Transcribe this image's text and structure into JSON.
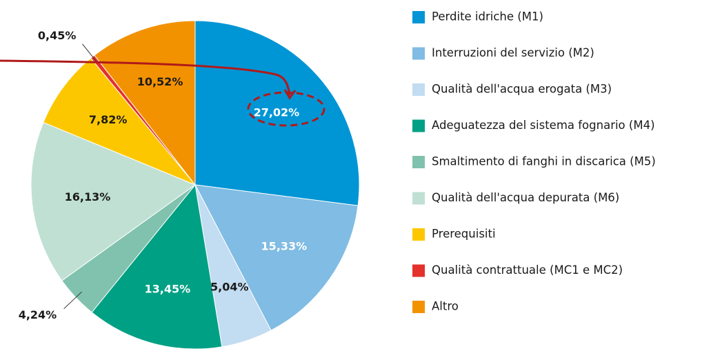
{
  "chart_data": {
    "type": "pie",
    "categories": [
      "Perdite idriche (M1)",
      "Interruzioni del servizio (M2)",
      "Qualità dell'acqua erogata (M3)",
      "Adeguatezza del sistema fognario (M4)",
      "Smaltimento di fanghi in discarica (M5)",
      "Qualità dell'acqua depurata (M6)",
      "Prerequisiti",
      "Qualità contrattuale (MC1 e MC2)",
      "Altro"
    ],
    "values": [
      27.02,
      15.33,
      5.04,
      13.45,
      4.24,
      16.13,
      7.82,
      0.45,
      10.52
    ],
    "value_labels": [
      "27,02%",
      "15,33%",
      "5,04%",
      "13,45%",
      "4,24%",
      "16,13%",
      "7,82%",
      "0,45%",
      "10,52%"
    ],
    "colors": [
      "#0095d5",
      "#80bce3",
      "#c2dcf1",
      "#00a084",
      "#80c2ad",
      "#c0e0d4",
      "#fdc700",
      "#e4312b",
      "#f39200"
    ]
  }
}
